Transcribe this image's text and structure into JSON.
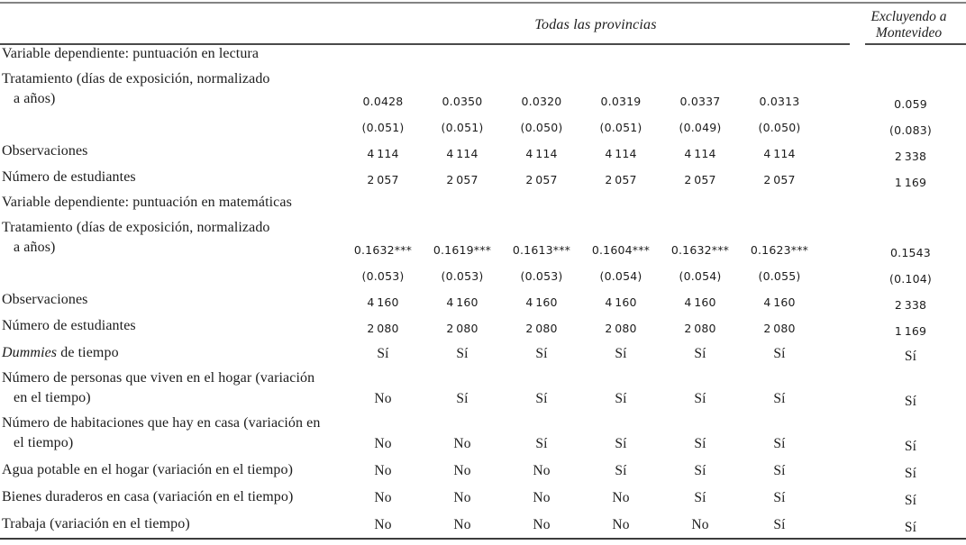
{
  "header": {
    "group_label": "Todas las provincias",
    "right_label_line1": "Excluyendo a",
    "right_label_line2": "Montevideo"
  },
  "colors": {
    "text": "#1c1c1c",
    "top_rule": "#838383",
    "header_rule": "#4a4a4a",
    "bottom_rule": "#3c3c3c"
  },
  "significance_note": "***",
  "table": {
    "rows": [
      {
        "type": "section",
        "label": [
          {
            "t": "Variable dependiente: puntuación en lectura"
          }
        ],
        "cells": [
          "",
          "",
          "",
          "",
          "",
          "",
          ""
        ]
      },
      {
        "type": "coef2",
        "label": [
          {
            "t": "Tratamiento (días de exposición, normalizado"
          }
        ],
        "label2": "a años)",
        "cells": [
          "0.0428",
          "0.0350",
          "0.0320",
          "0.0319",
          "0.0337",
          "0.0313",
          "0.059"
        ]
      },
      {
        "type": "num",
        "label": [],
        "cells": [
          "(0.051)",
          "(0.051)",
          "(0.050)",
          "(0.051)",
          "(0.049)",
          "(0.050)",
          "(0.083)"
        ]
      },
      {
        "type": "num",
        "label": [
          {
            "t": "Observaciones"
          }
        ],
        "cells": [
          "4 114",
          "4 114",
          "4 114",
          "4 114",
          "4 114",
          "4 114",
          "2 338"
        ]
      },
      {
        "type": "num",
        "label": [
          {
            "t": "Número de estudiantes"
          }
        ],
        "cells": [
          "2 057",
          "2 057",
          "2 057",
          "2 057",
          "2 057",
          "2 057",
          "1 169"
        ]
      },
      {
        "type": "section",
        "label": [
          {
            "t": "Variable dependiente: puntuación en matemáticas"
          }
        ],
        "cells": [
          "",
          "",
          "",
          "",
          "",
          "",
          ""
        ]
      },
      {
        "type": "coef2",
        "label": [
          {
            "t": "Tratamiento (días de exposición, normalizado"
          }
        ],
        "label2": "a años)",
        "cells": [
          "0.1632***",
          "0.1619***",
          "0.1613***",
          "0.1604***",
          "0.1632***",
          "0.1623***",
          "0.1543"
        ]
      },
      {
        "type": "num",
        "label": [],
        "cells": [
          "(0.053)",
          "(0.053)",
          "(0.053)",
          "(0.054)",
          "(0.054)",
          "(0.055)",
          "(0.104)"
        ]
      },
      {
        "type": "num",
        "label": [
          {
            "t": "Observaciones"
          }
        ],
        "cells": [
          "4 160",
          "4 160",
          "4 160",
          "4 160",
          "4 160",
          "4 160",
          "2 338"
        ]
      },
      {
        "type": "num",
        "label": [
          {
            "t": "Número de estudiantes"
          }
        ],
        "cells": [
          "2 080",
          "2 080",
          "2 080",
          "2 080",
          "2 080",
          "2 080",
          "1 169"
        ]
      },
      {
        "type": "yn",
        "label": [
          {
            "t": "Dummies",
            "i": true
          },
          {
            "t": " de tiempo"
          }
        ],
        "cells": [
          "Sí",
          "Sí",
          "Sí",
          "Sí",
          "Sí",
          "Sí",
          "Sí"
        ]
      },
      {
        "type": "yn2",
        "label": [
          {
            "t": "Número de personas que viven en el hogar (variación"
          }
        ],
        "label2": "en el tiempo)",
        "cells": [
          "No",
          "Sí",
          "Sí",
          "Sí",
          "Sí",
          "Sí",
          "Sí"
        ]
      },
      {
        "type": "yn2",
        "label": [
          {
            "t": "Número de habitaciones que hay en casa (variación en"
          }
        ],
        "label2": "el tiempo)",
        "cells": [
          "No",
          "No",
          "Sí",
          "Sí",
          "Sí",
          "Sí",
          "Sí"
        ]
      },
      {
        "type": "yn",
        "label": [
          {
            "t": "Agua potable en el hogar (variación en el tiempo)"
          }
        ],
        "cells": [
          "No",
          "No",
          "No",
          "Sí",
          "Sí",
          "Sí",
          "Sí"
        ]
      },
      {
        "type": "yn",
        "label": [
          {
            "t": "Bienes duraderos en casa (variación en el tiempo)"
          }
        ],
        "cells": [
          "No",
          "No",
          "No",
          "No",
          "Sí",
          "Sí",
          "Sí"
        ]
      },
      {
        "type": "yn",
        "label": [
          {
            "t": "Trabaja (variación en el tiempo)"
          }
        ],
        "cells": [
          "No",
          "No",
          "No",
          "No",
          "No",
          "Sí",
          "Sí"
        ]
      }
    ]
  }
}
